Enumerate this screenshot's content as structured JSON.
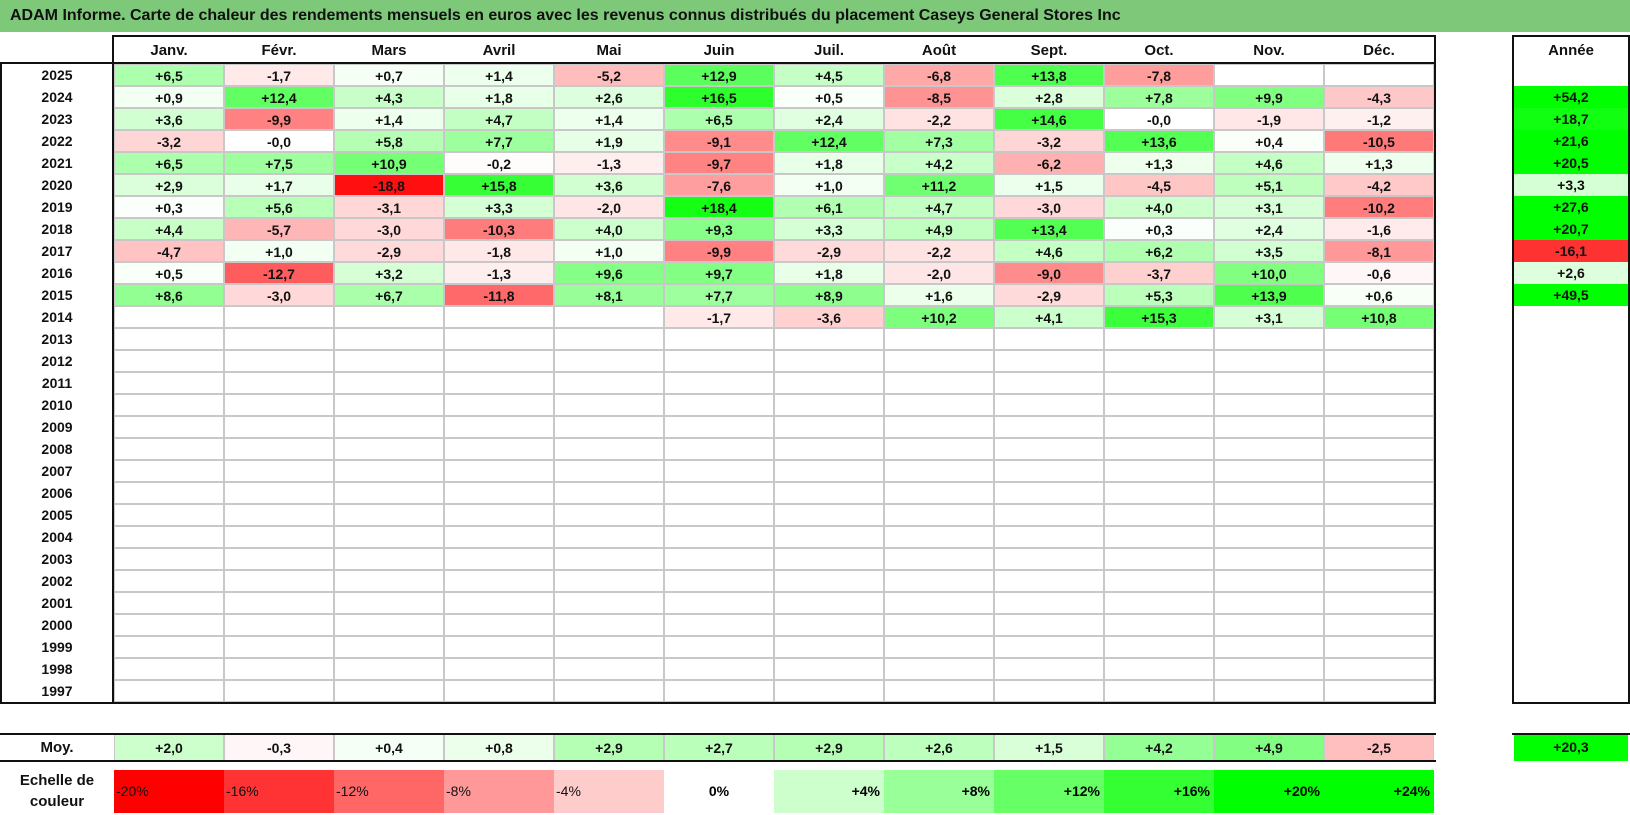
{
  "title": "ADAM Informe. Carte de chaleur des rendements mensuels en euros avec les revenus connus distribués du placement Caseys General Stores Inc",
  "chart_data": {
    "type": "heatmap",
    "months": [
      "Janv.",
      "Févr.",
      "Mars",
      "Avril",
      "Mai",
      "Juin",
      "Juil.",
      "Août",
      "Sept.",
      "Oct.",
      "Nov.",
      "Déc."
    ],
    "year_header": "Année",
    "rows": [
      {
        "year": "2025",
        "values": [
          "+6,5",
          "-1,7",
          "+0,7",
          "+1,4",
          "-5,2",
          "+12,9",
          "+4,5",
          "-6,8",
          "+13,8",
          "-7,8",
          "",
          ""
        ],
        "annual": ""
      },
      {
        "year": "2024",
        "values": [
          "+0,9",
          "+12,4",
          "+4,3",
          "+1,8",
          "+2,6",
          "+16,5",
          "+0,5",
          "-8,5",
          "+2,8",
          "+7,8",
          "+9,9",
          "-4,3"
        ],
        "annual": "+54,2"
      },
      {
        "year": "2023",
        "values": [
          "+3,6",
          "-9,9",
          "+1,4",
          "+4,7",
          "+1,4",
          "+6,5",
          "+2,4",
          "-2,2",
          "+14,6",
          "-0,0",
          "-1,9",
          "-1,2"
        ],
        "annual": "+18,7"
      },
      {
        "year": "2022",
        "values": [
          "-3,2",
          "-0,0",
          "+5,8",
          "+7,7",
          "+1,9",
          "-9,1",
          "+12,4",
          "+7,3",
          "-3,2",
          "+13,6",
          "+0,4",
          "-10,5"
        ],
        "annual": "+21,6"
      },
      {
        "year": "2021",
        "values": [
          "+6,5",
          "+7,5",
          "+10,9",
          "-0,2",
          "-1,3",
          "-9,7",
          "+1,8",
          "+4,2",
          "-6,2",
          "+1,3",
          "+4,6",
          "+1,3"
        ],
        "annual": "+20,5"
      },
      {
        "year": "2020",
        "values": [
          "+2,9",
          "+1,7",
          "-18,8",
          "+15,8",
          "+3,6",
          "-7,6",
          "+1,0",
          "+11,2",
          "+1,5",
          "-4,5",
          "+5,1",
          "-4,2"
        ],
        "annual": "+3,3"
      },
      {
        "year": "2019",
        "values": [
          "+0,3",
          "+5,6",
          "-3,1",
          "+3,3",
          "-2,0",
          "+18,4",
          "+6,1",
          "+4,7",
          "-3,0",
          "+4,0",
          "+3,1",
          "-10,2"
        ],
        "annual": "+27,6"
      },
      {
        "year": "2018",
        "values": [
          "+4,4",
          "-5,7",
          "-3,0",
          "-10,3",
          "+4,0",
          "+9,3",
          "+3,3",
          "+4,9",
          "+13,4",
          "+0,3",
          "+2,4",
          "-1,6"
        ],
        "annual": "+20,7"
      },
      {
        "year": "2017",
        "values": [
          "-4,7",
          "+1,0",
          "-2,9",
          "-1,8",
          "+1,0",
          "-9,9",
          "-2,9",
          "-2,2",
          "+4,6",
          "+6,2",
          "+3,5",
          "-8,1"
        ],
        "annual": "-16,1"
      },
      {
        "year": "2016",
        "values": [
          "+0,5",
          "-12,7",
          "+3,2",
          "-1,3",
          "+9,6",
          "+9,7",
          "+1,8",
          "-2,0",
          "-9,0",
          "-3,7",
          "+10,0",
          "-0,6"
        ],
        "annual": "+2,6"
      },
      {
        "year": "2015",
        "values": [
          "+8,6",
          "-3,0",
          "+6,7",
          "-11,8",
          "+8,1",
          "+7,7",
          "+8,9",
          "+1,6",
          "-2,9",
          "+5,3",
          "+13,9",
          "+0,6"
        ],
        "annual": "+49,5"
      },
      {
        "year": "2014",
        "values": [
          "",
          "",
          "",
          "",
          "",
          "-1,7",
          "-3,6",
          "+10,2",
          "+4,1",
          "+15,3",
          "+3,1",
          "+10,8"
        ],
        "annual": ""
      },
      {
        "year": "2013",
        "values": [
          "",
          "",
          "",
          "",
          "",
          "",
          "",
          "",
          "",
          "",
          "",
          ""
        ],
        "annual": ""
      },
      {
        "year": "2012",
        "values": [
          "",
          "",
          "",
          "",
          "",
          "",
          "",
          "",
          "",
          "",
          "",
          ""
        ],
        "annual": ""
      },
      {
        "year": "2011",
        "values": [
          "",
          "",
          "",
          "",
          "",
          "",
          "",
          "",
          "",
          "",
          "",
          ""
        ],
        "annual": ""
      },
      {
        "year": "2010",
        "values": [
          "",
          "",
          "",
          "",
          "",
          "",
          "",
          "",
          "",
          "",
          "",
          ""
        ],
        "annual": ""
      },
      {
        "year": "2009",
        "values": [
          "",
          "",
          "",
          "",
          "",
          "",
          "",
          "",
          "",
          "",
          "",
          ""
        ],
        "annual": ""
      },
      {
        "year": "2008",
        "values": [
          "",
          "",
          "",
          "",
          "",
          "",
          "",
          "",
          "",
          "",
          "",
          ""
        ],
        "annual": ""
      },
      {
        "year": "2007",
        "values": [
          "",
          "",
          "",
          "",
          "",
          "",
          "",
          "",
          "",
          "",
          "",
          ""
        ],
        "annual": ""
      },
      {
        "year": "2006",
        "values": [
          "",
          "",
          "",
          "",
          "",
          "",
          "",
          "",
          "",
          "",
          "",
          ""
        ],
        "annual": ""
      },
      {
        "year": "2005",
        "values": [
          "",
          "",
          "",
          "",
          "",
          "",
          "",
          "",
          "",
          "",
          "",
          ""
        ],
        "annual": ""
      },
      {
        "year": "2004",
        "values": [
          "",
          "",
          "",
          "",
          "",
          "",
          "",
          "",
          "",
          "",
          "",
          ""
        ],
        "annual": ""
      },
      {
        "year": "2003",
        "values": [
          "",
          "",
          "",
          "",
          "",
          "",
          "",
          "",
          "",
          "",
          "",
          ""
        ],
        "annual": ""
      },
      {
        "year": "2002",
        "values": [
          "",
          "",
          "",
          "",
          "",
          "",
          "",
          "",
          "",
          "",
          "",
          ""
        ],
        "annual": ""
      },
      {
        "year": "2001",
        "values": [
          "",
          "",
          "",
          "",
          "",
          "",
          "",
          "",
          "",
          "",
          "",
          ""
        ],
        "annual": ""
      },
      {
        "year": "2000",
        "values": [
          "",
          "",
          "",
          "",
          "",
          "",
          "",
          "",
          "",
          "",
          "",
          ""
        ],
        "annual": ""
      },
      {
        "year": "1999",
        "values": [
          "",
          "",
          "",
          "",
          "",
          "",
          "",
          "",
          "",
          "",
          "",
          ""
        ],
        "annual": ""
      },
      {
        "year": "1998",
        "values": [
          "",
          "",
          "",
          "",
          "",
          "",
          "",
          "",
          "",
          "",
          "",
          ""
        ],
        "annual": ""
      },
      {
        "year": "1997",
        "values": [
          "",
          "",
          "",
          "",
          "",
          "",
          "",
          "",
          "",
          "",
          "",
          ""
        ],
        "annual": ""
      }
    ],
    "average": {
      "label": "Moy.",
      "values": [
        "+2,0",
        "-0,3",
        "+0,4",
        "+0,8",
        "+2,9",
        "+2,7",
        "+2,9",
        "+2,6",
        "+1,5",
        "+4,2",
        "+4,9",
        "-2,5"
      ],
      "annual": "+20,3"
    },
    "color_scale": {
      "label": "Echelle de couleur",
      "stops": [
        "-20%",
        "-16%",
        "-12%",
        "-8%",
        "-4%",
        "0%",
        "+4%",
        "+8%",
        "+12%",
        "+16%",
        "+20%",
        "+24%"
      ],
      "negative_color": "#ff0000",
      "neutral_color": "#ffffff",
      "positive_color": "#00ff00"
    }
  }
}
